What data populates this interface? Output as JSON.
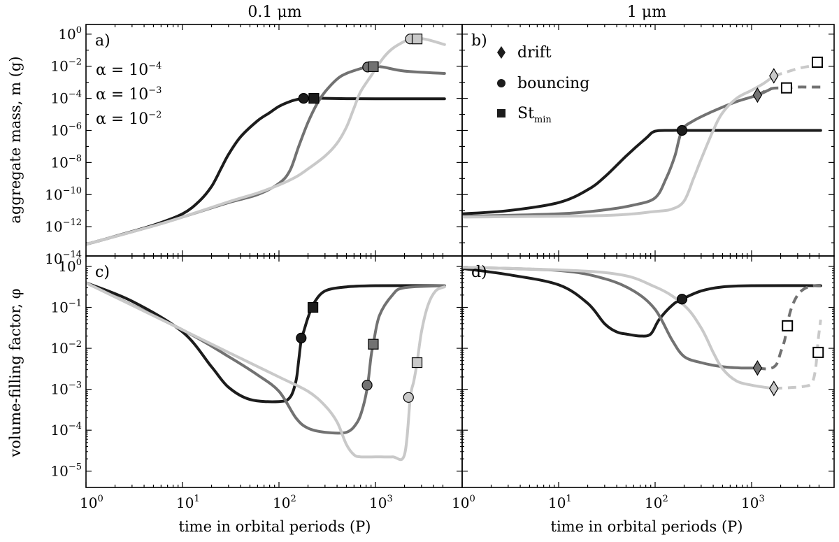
{
  "colors": {
    "a2": "#1c1c1c",
    "a3": "#727272",
    "a4": "#c9c9c9",
    "frame": "#000000"
  },
  "figure": {
    "col_titles": [
      "0.1 μm",
      "1 μm"
    ],
    "xlabel": "time in orbital periods (P)",
    "ylabel_top": "aggregate mass, m (g)",
    "ylabel_bottom": "volume-filling factor, φ",
    "x_tick_bases": [
      "10",
      "10",
      "10",
      "10"
    ],
    "x_tick_exps": [
      "0",
      "1",
      "2",
      "3"
    ]
  },
  "legend_alpha": {
    "a4": {
      "text": "α = 10",
      "exp": "−4"
    },
    "a3": {
      "text": "α = 10",
      "exp": "−3"
    },
    "a2": {
      "text": "α = 10",
      "exp": "−2"
    }
  },
  "legend_markers": {
    "drift": "drift",
    "bouncing": "bouncing",
    "stmin": "St",
    "stmin_sub": "min"
  },
  "chart_data": [
    {
      "id": "a",
      "type": "line",
      "panel_label": "a)",
      "xlabel": "time in orbital periods (P)",
      "ylabel": "aggregate mass, m (g)",
      "xscale": "log",
      "yscale": "log",
      "xlim": [
        1,
        5200
      ],
      "ylim": [
        1.5e-14,
        4
      ],
      "yticks": [
        -14,
        -12,
        -10,
        -8,
        -6,
        -4,
        -2,
        0
      ],
      "series": [
        {
          "name": "α = 10^-2",
          "color_key": "a2",
          "x": [
            1,
            2,
            5,
            10,
            15,
            20,
            25,
            30,
            40,
            60,
            80,
            100,
            130,
            160,
            180,
            200,
            230,
            300,
            500,
            1000,
            5200
          ],
          "y": [
            -13.1,
            -12.6,
            -11.9,
            -11.2,
            -10.4,
            -9.5,
            -8.4,
            -7.5,
            -6.4,
            -5.4,
            -4.9,
            -4.5,
            -4.2,
            -4.05,
            -4.0,
            -4.0,
            -4.0,
            -4.0,
            -4.02,
            -4.03,
            -4.03
          ]
        },
        {
          "name": "α = 10^-3",
          "color_key": "a3",
          "x": [
            1,
            5,
            10,
            30,
            60,
            100,
            130,
            160,
            200,
            250,
            300,
            400,
            500,
            700,
            830,
            950,
            1200,
            2000,
            5200
          ],
          "y": [
            -13.1,
            -11.95,
            -11.4,
            -10.5,
            -10.0,
            -9.3,
            -8.5,
            -7.0,
            -5.5,
            -4.3,
            -3.6,
            -2.8,
            -2.45,
            -2.15,
            -2.05,
            -2.0,
            -2.05,
            -2.3,
            -2.45
          ]
        },
        {
          "name": "α = 10^-4",
          "color_key": "a4",
          "x": [
            1,
            5,
            10,
            30,
            60,
            100,
            150,
            200,
            300,
            400,
            500,
            600,
            700,
            900,
            1200,
            1500,
            2000,
            2300,
            2700,
            3500,
            5200
          ],
          "y": [
            -13.1,
            -11.95,
            -11.4,
            -10.45,
            -9.9,
            -9.4,
            -8.9,
            -8.4,
            -7.6,
            -6.8,
            -5.8,
            -4.6,
            -3.6,
            -2.6,
            -1.5,
            -0.9,
            -0.45,
            -0.3,
            -0.25,
            -0.35,
            -0.65
          ]
        }
      ],
      "markers": [
        {
          "type": "circle",
          "color_key": "a2",
          "x": 180,
          "y": -4.0
        },
        {
          "type": "square",
          "color_key": "a2",
          "x": 230,
          "y": -4.0
        },
        {
          "type": "circle",
          "color_key": "a3",
          "x": 830,
          "y": -2.05
        },
        {
          "type": "square",
          "color_key": "a3",
          "x": 950,
          "y": -2.03
        },
        {
          "type": "circle",
          "color_key": "a4",
          "x": 2300,
          "y": -0.3
        },
        {
          "type": "square",
          "color_key": "a4",
          "x": 2700,
          "y": -0.3
        }
      ]
    },
    {
      "id": "b",
      "type": "line",
      "panel_label": "b)",
      "xlabel": "time in orbital periods (P)",
      "ylabel": "aggregate mass, m (g)",
      "xscale": "log",
      "yscale": "log",
      "xlim": [
        1,
        5200
      ],
      "ylim": [
        1.5e-14,
        4
      ],
      "yticks": [
        -14,
        -12,
        -10,
        -8,
        -6,
        -4,
        -2,
        0
      ],
      "series": [
        {
          "name": "α = 10^-2",
          "color_key": "a2",
          "x": [
            1,
            3,
            10,
            20,
            30,
            50,
            80,
            100,
            150,
            190,
            300,
            1000,
            5200
          ],
          "y": [
            -11.2,
            -11.0,
            -10.5,
            -9.7,
            -8.9,
            -7.6,
            -6.5,
            -6.05,
            -6.0,
            -6.0,
            -6.0,
            -6.0,
            -6.0
          ]
        },
        {
          "name": "α = 10^-3",
          "color_key": "a3",
          "x": [
            1,
            10,
            30,
            60,
            100,
            130,
            160,
            190,
            250,
            400,
            700,
            1150,
            1600
          ],
          "y": [
            -11.35,
            -11.2,
            -10.95,
            -10.65,
            -10.2,
            -9.0,
            -7.6,
            -6.0,
            -5.4,
            -4.8,
            -4.2,
            -3.8,
            -3.4
          ]
        },
        {
          "name": "α = 10^-4",
          "color_key": "a4",
          "x": [
            1,
            30,
            100,
            150,
            200,
            250,
            300,
            400,
            500,
            700,
            1000,
            1350,
            1700
          ],
          "y": [
            -11.4,
            -11.3,
            -11.05,
            -10.9,
            -10.4,
            -9.0,
            -7.8,
            -6.0,
            -4.9,
            -4.0,
            -3.5,
            -3.05,
            -2.6
          ]
        },
        {
          "name": "α = 10^-3 (dashed)",
          "color_key": "a3",
          "dashed": true,
          "x": [
            1150,
            1600,
            2300,
            3000,
            4000,
            5200
          ],
          "y": [
            -3.8,
            -3.4,
            -3.35,
            -3.3,
            -3.3,
            -3.3
          ]
        },
        {
          "name": "α = 10^-4 (dashed)",
          "color_key": "a4",
          "dashed": true,
          "x": [
            1700,
            2200,
            3000,
            4000,
            5200
          ],
          "y": [
            -2.6,
            -2.4,
            -2.15,
            -2.0,
            -1.9
          ]
        }
      ],
      "markers": [
        {
          "type": "circle",
          "color_key": "a2",
          "x": 190,
          "y": -6.0
        },
        {
          "type": "diamond",
          "color_key": "a3",
          "x": 1150,
          "y": -3.8
        },
        {
          "type": "square_open",
          "color_key": "a3",
          "x": 2300,
          "y": -3.35
        },
        {
          "type": "diamond",
          "color_key": "a4",
          "x": 1700,
          "y": -2.6
        },
        {
          "type": "square_open",
          "color_key": "a4",
          "x": 4800,
          "y": -1.75
        }
      ]
    },
    {
      "id": "c",
      "type": "line",
      "panel_label": "c)",
      "xlabel": "time in orbital periods (P)",
      "ylabel": "volume-filling factor, φ",
      "xscale": "log",
      "yscale": "log",
      "xlim": [
        1,
        5200
      ],
      "ylim": [
        4e-06,
        1.8
      ],
      "yticks": [
        -5,
        -4,
        -3,
        -2,
        -1,
        0
      ],
      "series": [
        {
          "name": "α = 10^-2",
          "color_key": "a2",
          "x": [
            1,
            3,
            10,
            20,
            30,
            50,
            100,
            130,
            150,
            160,
            170,
            180,
            200,
            230,
            300,
            500,
            1000,
            5200
          ],
          "y": [
            -0.4,
            -0.85,
            -1.6,
            -2.45,
            -2.95,
            -3.25,
            -3.3,
            -3.2,
            -2.8,
            -2.3,
            -1.8,
            -1.6,
            -1.25,
            -0.9,
            -0.6,
            -0.5,
            -0.47,
            -0.47
          ]
        },
        {
          "name": "α = 10^-3",
          "color_key": "a3",
          "x": [
            1,
            10,
            30,
            60,
            100,
            150,
            200,
            300,
            500,
            650,
            750,
            830,
            900,
            950,
            1100,
            1500,
            2000,
            5200
          ],
          "y": [
            -0.4,
            -1.55,
            -2.2,
            -2.65,
            -3.05,
            -3.7,
            -3.95,
            -4.05,
            -4.05,
            -3.8,
            -3.4,
            -2.9,
            -2.2,
            -1.9,
            -1.2,
            -0.7,
            -0.52,
            -0.47
          ]
        },
        {
          "name": "α = 10^-4",
          "color_key": "a4",
          "x": [
            1,
            10,
            30,
            100,
            200,
            300,
            400,
            500,
            600,
            700,
            1000,
            1500,
            2000,
            2300,
            2500,
            2700,
            3000,
            3500,
            4200,
            5200
          ],
          "y": [
            -0.4,
            -1.55,
            -2.1,
            -2.7,
            -3.05,
            -3.4,
            -3.8,
            -4.35,
            -4.6,
            -4.65,
            -4.65,
            -4.65,
            -4.6,
            -3.2,
            -2.8,
            -2.35,
            -1.6,
            -0.95,
            -0.6,
            -0.5
          ]
        }
      ],
      "markers": [
        {
          "type": "circle",
          "color_key": "a2",
          "x": 170,
          "y": -1.75
        },
        {
          "type": "square",
          "color_key": "a2",
          "x": 225,
          "y": -1.0
        },
        {
          "type": "circle",
          "color_key": "a3",
          "x": 820,
          "y": -2.9
        },
        {
          "type": "square",
          "color_key": "a3",
          "x": 950,
          "y": -1.9
        },
        {
          "type": "circle",
          "color_key": "a4",
          "x": 2200,
          "y": -3.2
        },
        {
          "type": "square",
          "color_key": "a4",
          "x": 2700,
          "y": -2.35
        }
      ]
    },
    {
      "id": "d",
      "type": "line",
      "panel_label": "d)",
      "xlabel": "time in orbital periods (P)",
      "ylabel": "volume-filling factor, φ",
      "xscale": "log",
      "yscale": "log",
      "xlim": [
        1,
        5200
      ],
      "ylim": [
        4e-06,
        1.8
      ],
      "yticks": [
        -5,
        -4,
        -3,
        -2,
        -1,
        0
      ],
      "series": [
        {
          "name": "α = 10^-2",
          "color_key": "a2",
          "x": [
            1,
            3,
            10,
            20,
            30,
            40,
            50,
            70,
            90,
            110,
            150,
            190,
            300,
            500,
            1000,
            5200
          ],
          "y": [
            -0.05,
            -0.2,
            -0.45,
            -0.9,
            -1.4,
            -1.6,
            -1.65,
            -1.7,
            -1.65,
            -1.3,
            -0.95,
            -0.8,
            -0.6,
            -0.5,
            -0.47,
            -0.47
          ]
        },
        {
          "name": "α = 10^-3",
          "color_key": "a3",
          "x": [
            1,
            10,
            30,
            60,
            100,
            150,
            200,
            300,
            500,
            800,
            1150
          ],
          "y": [
            -0.02,
            -0.1,
            -0.3,
            -0.6,
            -1.05,
            -1.8,
            -2.2,
            -2.35,
            -2.45,
            -2.48,
            -2.48
          ]
        },
        {
          "name": "α = 10^-4",
          "color_key": "a4",
          "x": [
            1,
            30,
            100,
            200,
            300,
            400,
            500,
            700,
            1000,
            1350,
            1700
          ],
          "y": [
            -0.02,
            -0.15,
            -0.5,
            -0.95,
            -1.5,
            -2.1,
            -2.5,
            -2.8,
            -2.9,
            -2.95,
            -2.98
          ]
        },
        {
          "name": "α = 10^-3 (dashed)",
          "color_key": "a3",
          "dashed": true,
          "x": [
            1150,
            1500,
            1800,
            2000,
            2200,
            2350,
            2600,
            3000,
            3500,
            4200,
            5200
          ],
          "y": [
            -2.48,
            -2.5,
            -2.4,
            -2.1,
            -1.8,
            -1.4,
            -1.0,
            -0.7,
            -0.55,
            -0.48,
            -0.46
          ]
        },
        {
          "name": "α = 10^-4 (dashed)",
          "color_key": "a4",
          "dashed": true,
          "x": [
            1700,
            2500,
            3500,
            4200,
            4600,
            4900,
            5200
          ],
          "y": [
            -2.98,
            -2.96,
            -2.93,
            -2.85,
            -2.5,
            -1.8,
            -1.3
          ]
        }
      ],
      "markers": [
        {
          "type": "circle",
          "color_key": "a2",
          "x": 190,
          "y": -0.8
        },
        {
          "type": "diamond",
          "color_key": "a3",
          "x": 1150,
          "y": -2.48
        },
        {
          "type": "square_open",
          "color_key": "a3",
          "x": 2350,
          "y": -1.45
        },
        {
          "type": "diamond",
          "color_key": "a4",
          "x": 1700,
          "y": -2.98
        },
        {
          "type": "square_open",
          "color_key": "a4",
          "x": 4900,
          "y": -2.1
        }
      ]
    }
  ]
}
